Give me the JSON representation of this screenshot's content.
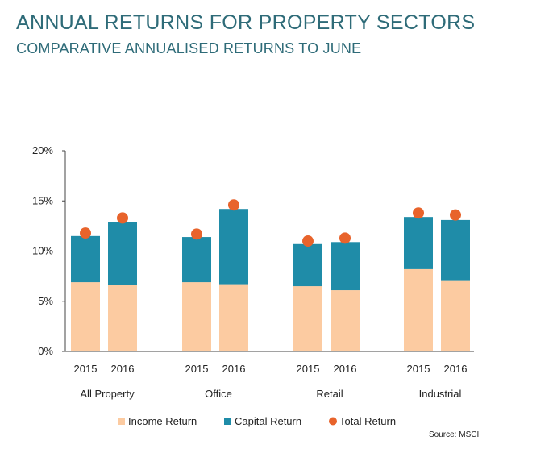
{
  "chart_data": {
    "type": "bar",
    "title": "ANNUAL RETURNS FOR PROPERTY SECTORS",
    "subtitle": "COMPARATIVE ANNUALISED RETURNS TO JUNE",
    "groups": [
      "All Property",
      "Office",
      "Retail",
      "Industrial"
    ],
    "categories": [
      "2015",
      "2016"
    ],
    "y_ticks": [
      "0%",
      "5%",
      "10%",
      "15%",
      "20%"
    ],
    "ylim": [
      0,
      20
    ],
    "grid": false,
    "stacked": true,
    "legend_position": "bottom",
    "series": [
      {
        "name": "Income Return",
        "type": "bar",
        "color": "#fccba1",
        "values": [
          [
            6.9,
            6.6
          ],
          [
            6.9,
            6.7
          ],
          [
            6.5,
            6.1
          ],
          [
            8.2,
            7.1
          ]
        ]
      },
      {
        "name": "Capital Return",
        "type": "bar",
        "color": "#1f8ca8",
        "values": [
          [
            4.6,
            6.3
          ],
          [
            4.5,
            7.5
          ],
          [
            4.2,
            4.8
          ],
          [
            5.2,
            6.0
          ]
        ]
      },
      {
        "name": "Total Return",
        "type": "dot",
        "color": "#e8632b",
        "values": [
          [
            11.8,
            13.3
          ],
          [
            11.7,
            14.6
          ],
          [
            11.0,
            11.3
          ],
          [
            13.8,
            13.6
          ]
        ]
      }
    ],
    "source": "Source: MSCI"
  }
}
